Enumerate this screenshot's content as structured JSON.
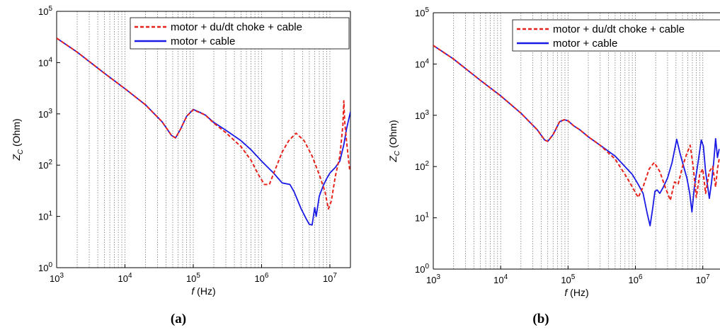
{
  "chart_data": [
    {
      "type": "line",
      "panel_label": "(a)",
      "xlabel": "f (Hz)",
      "ylabel": "Z_C (Ohm)",
      "xscale": "log",
      "yscale": "log",
      "xlim": [
        1000,
        20000000
      ],
      "ylim": [
        1,
        100000
      ],
      "x_tick_labels": [
        "10^3",
        "10^4",
        "10^5",
        "10^6",
        "10^7"
      ],
      "y_tick_labels": [
        "10^0",
        "10^1",
        "10^2",
        "10^3",
        "10^4",
        "10^5"
      ],
      "grid": "vertical minor + major (dotted)",
      "legend_position": "top-right",
      "series": [
        {
          "name": "motor + du/dt choke + cable",
          "color": "#e8231b",
          "style": "dashed",
          "points": [
            [
              1000,
              30000
            ],
            [
              2000,
              16000
            ],
            [
              5000,
              6200
            ],
            [
              10000,
              3100
            ],
            [
              20000,
              1500
            ],
            [
              35000,
              700
            ],
            [
              48000,
              380
            ],
            [
              55000,
              340
            ],
            [
              65000,
              500
            ],
            [
              80000,
              900
            ],
            [
              100000,
              1200
            ],
            [
              120000,
              1080
            ],
            [
              150000,
              950
            ],
            [
              200000,
              660
            ],
            [
              300000,
              430
            ],
            [
              500000,
              230
            ],
            [
              700000,
              125
            ],
            [
              900000,
              65
            ],
            [
              1100000,
              42
            ],
            [
              1300000,
              42
            ],
            [
              1600000,
              85
            ],
            [
              2000000,
              180
            ],
            [
              2500000,
              300
            ],
            [
              3200000,
              420
            ],
            [
              4200000,
              300
            ],
            [
              5500000,
              150
            ],
            [
              7000000,
              65
            ],
            [
              8500000,
              30
            ],
            [
              9500000,
              14
            ],
            [
              10500000,
              20
            ],
            [
              12000000,
              60
            ],
            [
              14000000,
              150
            ],
            [
              15500000,
              600
            ],
            [
              16000000,
              1800
            ],
            [
              16500000,
              700
            ],
            [
              17500000,
              300
            ],
            [
              18500000,
              150
            ],
            [
              19500000,
              80
            ]
          ]
        },
        {
          "name": "motor + cable",
          "color": "#1a1ae6",
          "style": "solid",
          "points": [
            [
              1000,
              30000
            ],
            [
              2000,
              16000
            ],
            [
              5000,
              6200
            ],
            [
              10000,
              3100
            ],
            [
              20000,
              1500
            ],
            [
              35000,
              700
            ],
            [
              48000,
              380
            ],
            [
              55000,
              340
            ],
            [
              65000,
              500
            ],
            [
              80000,
              900
            ],
            [
              100000,
              1220
            ],
            [
              120000,
              1100
            ],
            [
              150000,
              950
            ],
            [
              200000,
              680
            ],
            [
              300000,
              480
            ],
            [
              500000,
              300
            ],
            [
              700000,
              200
            ],
            [
              1000000,
              120
            ],
            [
              1500000,
              70
            ],
            [
              2000000,
              45
            ],
            [
              2600000,
              42
            ],
            [
              3000000,
              30
            ],
            [
              3800000,
              14
            ],
            [
              4500000,
              9
            ],
            [
              5000000,
              7
            ],
            [
              5500000,
              6.8
            ],
            [
              6000000,
              15
            ],
            [
              6300000,
              10
            ],
            [
              7000000,
              25
            ],
            [
              8000000,
              40
            ],
            [
              9000000,
              55
            ],
            [
              10000000,
              70
            ],
            [
              12000000,
              90
            ],
            [
              14000000,
              120
            ],
            [
              16000000,
              250
            ],
            [
              17500000,
              500
            ],
            [
              20000000,
              1100
            ]
          ]
        }
      ]
    },
    {
      "type": "line",
      "panel_label": "(b)",
      "xlabel": "f (Hz)",
      "ylabel": "Z_C (Ohm)",
      "xscale": "log",
      "yscale": "log",
      "xlim": [
        1000,
        18000000
      ],
      "ylim": [
        1,
        100000
      ],
      "x_tick_labels": [
        "10^3",
        "10^4",
        "10^5",
        "10^6",
        "10^7"
      ],
      "y_tick_labels": [
        "10^0",
        "10^1",
        "10^2",
        "10^3",
        "10^4",
        "10^5"
      ],
      "grid": "vertical minor + major (dotted)",
      "legend_position": "top-right",
      "series": [
        {
          "name": "motor + du/dt choke + cable",
          "color": "#e8231b",
          "style": "dashed",
          "points": [
            [
              1000,
              23000
            ],
            [
              2000,
              12500
            ],
            [
              5000,
              4800
            ],
            [
              10000,
              2400
            ],
            [
              20000,
              1100
            ],
            [
              35000,
              520
            ],
            [
              45000,
              330
            ],
            [
              50000,
              310
            ],
            [
              60000,
              420
            ],
            [
              75000,
              750
            ],
            [
              88000,
              820
            ],
            [
              100000,
              780
            ],
            [
              120000,
              630
            ],
            [
              150000,
              520
            ],
            [
              200000,
              380
            ],
            [
              300000,
              260
            ],
            [
              500000,
              140
            ],
            [
              700000,
              70
            ],
            [
              900000,
              40
            ],
            [
              1100000,
              25
            ],
            [
              1300000,
              40
            ],
            [
              1600000,
              90
            ],
            [
              1900000,
              120
            ],
            [
              2300000,
              80
            ],
            [
              2800000,
              38
            ],
            [
              3300000,
              22
            ],
            [
              3800000,
              50
            ],
            [
              4300000,
              45
            ],
            [
              5000000,
              100
            ],
            [
              5800000,
              180
            ],
            [
              6500000,
              260
            ],
            [
              7200000,
              100
            ],
            [
              8000000,
              25
            ],
            [
              9000000,
              70
            ],
            [
              10000000,
              90
            ],
            [
              11000000,
              30
            ],
            [
              12500000,
              80
            ],
            [
              14000000,
              100
            ],
            [
              15500000,
              40
            ],
            [
              16500000,
              90
            ],
            [
              17500000,
              140
            ]
          ]
        },
        {
          "name": "motor + cable",
          "color": "#1a1ae6",
          "style": "solid",
          "points": [
            [
              1000,
              23000
            ],
            [
              2000,
              12500
            ],
            [
              5000,
              4800
            ],
            [
              10000,
              2400
            ],
            [
              20000,
              1100
            ],
            [
              35000,
              520
            ],
            [
              45000,
              330
            ],
            [
              50000,
              310
            ],
            [
              60000,
              420
            ],
            [
              75000,
              750
            ],
            [
              88000,
              820
            ],
            [
              100000,
              780
            ],
            [
              120000,
              630
            ],
            [
              150000,
              520
            ],
            [
              200000,
              380
            ],
            [
              300000,
              260
            ],
            [
              500000,
              160
            ],
            [
              700000,
              100
            ],
            [
              900000,
              70
            ],
            [
              1100000,
              45
            ],
            [
              1300000,
              30
            ],
            [
              1500000,
              12
            ],
            [
              1650000,
              7
            ],
            [
              1800000,
              15
            ],
            [
              1950000,
              33
            ],
            [
              2100000,
              35
            ],
            [
              2300000,
              30
            ],
            [
              2600000,
              40
            ],
            [
              3000000,
              60
            ],
            [
              3500000,
              120
            ],
            [
              4100000,
              340
            ],
            [
              4600000,
              180
            ],
            [
              5200000,
              100
            ],
            [
              5800000,
              60
            ],
            [
              6400000,
              30
            ],
            [
              6900000,
              13
            ],
            [
              7500000,
              40
            ],
            [
              8500000,
              120
            ],
            [
              9500000,
              330
            ],
            [
              10200000,
              250
            ],
            [
              11000000,
              80
            ],
            [
              12500000,
              24
            ],
            [
              13500000,
              50
            ],
            [
              14500000,
              120
            ],
            [
              15500000,
              350
            ],
            [
              16500000,
              150
            ],
            [
              17500000,
              220
            ]
          ]
        }
      ]
    }
  ]
}
